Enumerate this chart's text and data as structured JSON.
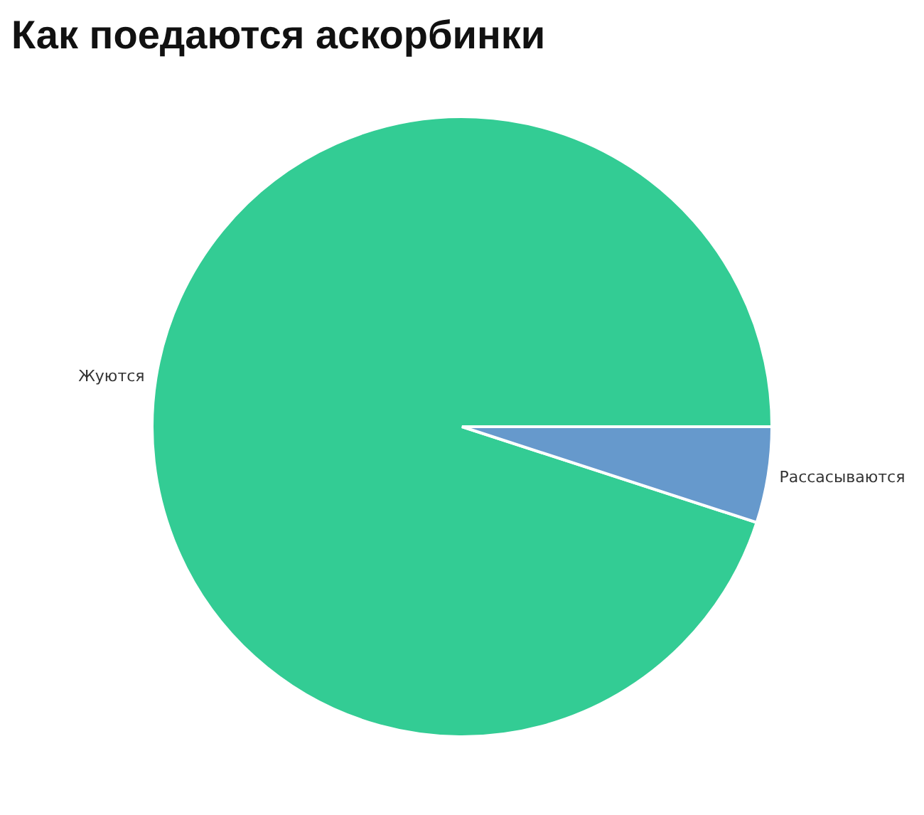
{
  "chart_data": {
    "type": "pie",
    "title": "Как поедаются аскорбинки",
    "categories": [
      "Жуются",
      "Рассасываются"
    ],
    "values": [
      95,
      5
    ],
    "colors": [
      "#33cc94",
      "#6699cc"
    ]
  }
}
